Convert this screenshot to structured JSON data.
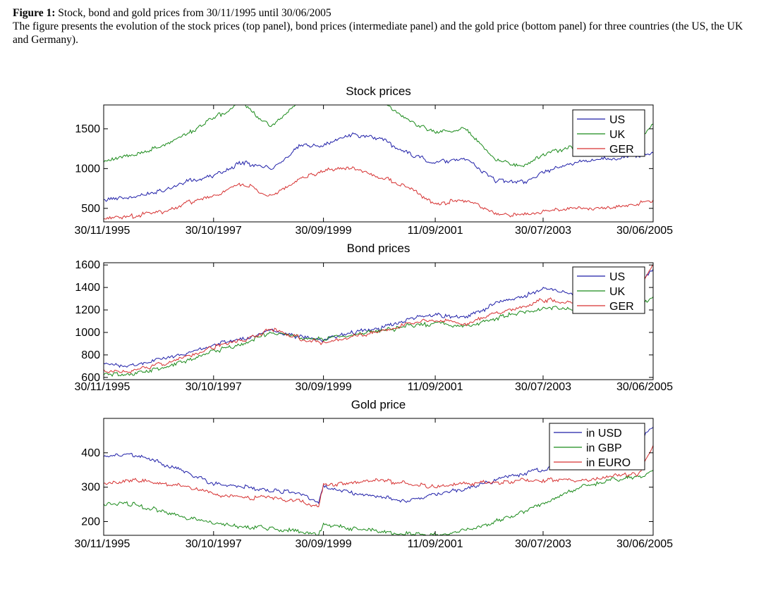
{
  "caption": {
    "label": "Figure 1:",
    "title": "Stock, bond and gold prices from 30/11/1995 until 30/06/2005",
    "text": "The figure presents the evolution of the stock prices (top panel), bond prices (intermediate panel) and the gold price (bottom panel) for three countries (the US, the UK and Germany)."
  },
  "colors": {
    "blue": "#1f1fa8",
    "green": "#1a8a1a",
    "red": "#d63030"
  },
  "chart_data": [
    {
      "type": "line",
      "title": "Stock prices",
      "x_start": "30/11/1995",
      "x_end": "30/06/2005",
      "xticks": [
        "30/11/1995",
        "30/10/1997",
        "30/09/1999",
        "11/09/2001",
        "30/07/2003",
        "30/06/2005"
      ],
      "yticks": [
        500,
        1000,
        1500
      ],
      "ylim": [
        330,
        1800
      ],
      "legend": "top-right",
      "x": [
        "30/11/1995",
        "30/05/1996",
        "30/11/1996",
        "30/05/1997",
        "30/10/1997",
        "30/04/1998",
        "30/10/1998",
        "30/04/1999",
        "30/09/1999",
        "30/03/2000",
        "30/09/2000",
        "30/03/2001",
        "11/09/2001",
        "30/03/2002",
        "30/09/2002",
        "30/03/2003",
        "30/07/2003",
        "30/03/2004",
        "30/09/2004",
        "30/03/2005",
        "30/06/2005"
      ],
      "series": [
        {
          "name": "US",
          "color": "#1f1fa8",
          "values": [
            600,
            650,
            720,
            840,
            920,
            1080,
            1000,
            1270,
            1300,
            1430,
            1380,
            1180,
            1080,
            1120,
            850,
            830,
            960,
            1100,
            1120,
            1170,
            1190
          ]
        },
        {
          "name": "UK",
          "color": "#1a8a1a",
          "values": [
            1090,
            1160,
            1280,
            1450,
            1640,
            1830,
            1520,
            1830,
            1900,
            1880,
            1850,
            1600,
            1450,
            1500,
            1120,
            1030,
            1180,
            1300,
            1320,
            1350,
            1550
          ]
        },
        {
          "name": "GER",
          "color": "#d63030",
          "values": [
            380,
            400,
            460,
            580,
            660,
            820,
            640,
            860,
            970,
            1020,
            890,
            760,
            560,
            610,
            430,
            410,
            460,
            500,
            500,
            560,
            610
          ]
        }
      ]
    },
    {
      "type": "line",
      "title": "Bond prices",
      "x_start": "30/11/1995",
      "x_end": "30/06/2005",
      "xticks": [
        "30/11/1995",
        "30/10/1997",
        "30/09/1999",
        "11/09/2001",
        "30/07/2003",
        "30/06/2005"
      ],
      "yticks": [
        600,
        800,
        1000,
        1200,
        1400,
        1600
      ],
      "ylim": [
        580,
        1620
      ],
      "legend": "top-right",
      "x": [
        "30/11/1995",
        "30/05/1996",
        "30/11/1996",
        "30/05/1997",
        "30/10/1997",
        "30/04/1998",
        "30/10/1998",
        "30/04/1999",
        "30/09/1999",
        "30/03/2000",
        "30/09/2000",
        "30/03/2001",
        "11/09/2001",
        "30/03/2002",
        "30/09/2002",
        "30/03/2003",
        "30/07/2003",
        "30/03/2004",
        "30/09/2004",
        "30/03/2005",
        "30/06/2005"
      ],
      "series": [
        {
          "name": "US",
          "color": "#1f1fa8",
          "values": [
            720,
            700,
            760,
            810,
            890,
            940,
            1020,
            960,
            930,
            1000,
            1040,
            1120,
            1160,
            1130,
            1260,
            1320,
            1390,
            1330,
            1370,
            1440,
            1560
          ]
        },
        {
          "name": "UK",
          "color": "#1a8a1a",
          "values": [
            620,
            630,
            680,
            760,
            830,
            900,
            1000,
            960,
            940,
            980,
            1010,
            1060,
            1080,
            1050,
            1130,
            1180,
            1220,
            1200,
            1200,
            1260,
            1300
          ]
        },
        {
          "name": "GER",
          "color": "#d63030",
          "values": [
            660,
            650,
            720,
            790,
            870,
            920,
            1030,
            950,
            900,
            960,
            1010,
            1090,
            1110,
            1080,
            1170,
            1230,
            1290,
            1260,
            1290,
            1380,
            1610
          ]
        }
      ]
    },
    {
      "type": "line",
      "title": "Gold price",
      "x_start": "30/11/1995",
      "x_end": "30/06/2005",
      "xticks": [
        "30/11/1995",
        "30/10/1997",
        "30/09/1999",
        "11/09/2001",
        "30/07/2003",
        "30/06/2005"
      ],
      "yticks": [
        200,
        300,
        400
      ],
      "ylim": [
        160,
        500
      ],
      "legend": "top-right",
      "x": [
        "30/11/1995",
        "30/05/1996",
        "30/11/1996",
        "30/05/1997",
        "30/10/1997",
        "30/04/1998",
        "30/10/1998",
        "30/04/1999",
        "30/08/1999",
        "30/09/1999",
        "30/03/2000",
        "30/09/2000",
        "30/03/2001",
        "11/09/2001",
        "30/03/2002",
        "30/09/2002",
        "30/03/2003",
        "30/07/2003",
        "30/03/2004",
        "30/09/2004",
        "30/03/2005",
        "30/06/2005"
      ],
      "series": [
        {
          "name": "in USD",
          "color": "#1f1fa8",
          "values": [
            390,
            395,
            370,
            340,
            310,
            300,
            290,
            285,
            255,
            300,
            285,
            270,
            260,
            280,
            295,
            320,
            340,
            350,
            410,
            410,
            430,
            480
          ]
        },
        {
          "name": "in GBP",
          "color": "#1a8a1a",
          "values": [
            250,
            250,
            230,
            210,
            195,
            185,
            180,
            170,
            160,
            190,
            180,
            170,
            165,
            160,
            175,
            200,
            230,
            250,
            300,
            320,
            330,
            350
          ]
        },
        {
          "name": "in EURO",
          "color": "#d63030",
          "values": [
            315,
            320,
            310,
            300,
            280,
            270,
            270,
            260,
            245,
            305,
            310,
            320,
            310,
            300,
            310,
            315,
            320,
            320,
            320,
            330,
            340,
            420
          ]
        }
      ]
    }
  ]
}
